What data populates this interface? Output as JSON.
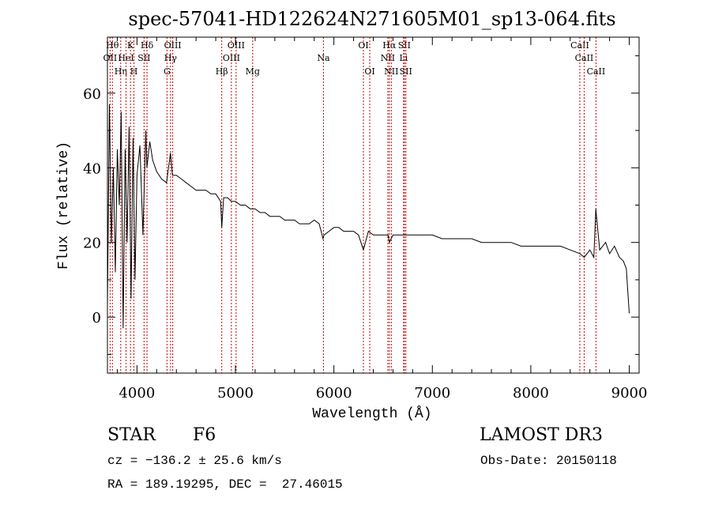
{
  "chart_data": {
    "type": "line",
    "title": "spec-57041-HD122624N271605M01_sp13-064.fits",
    "xlabel": "Wavelength (Å)",
    "ylabel": "Flux (relative)",
    "xlim": [
      3700,
      9100
    ],
    "ylim": [
      -15,
      75
    ],
    "xticks": [
      4000,
      5000,
      6000,
      7000,
      8000,
      9000
    ],
    "yticks": [
      0,
      20,
      40,
      60
    ],
    "series": [
      {
        "name": "spectrum",
        "color": "#000000",
        "x": [
          3700,
          3720,
          3740,
          3760,
          3780,
          3800,
          3820,
          3840,
          3860,
          3880,
          3900,
          3920,
          3940,
          3960,
          3980,
          4000,
          4030,
          4060,
          4090,
          4100,
          4130,
          4160,
          4200,
          4250,
          4300,
          4340,
          4360,
          4400,
          4450,
          4500,
          4550,
          4600,
          4650,
          4700,
          4750,
          4800,
          4850,
          4861,
          4880,
          4920,
          4960,
          5000,
          5050,
          5100,
          5150,
          5200,
          5250,
          5300,
          5350,
          5400,
          5450,
          5500,
          5550,
          5600,
          5650,
          5700,
          5750,
          5800,
          5850,
          5890,
          5900,
          5950,
          6000,
          6050,
          6100,
          6150,
          6200,
          6250,
          6300,
          6350,
          6400,
          6450,
          6500,
          6550,
          6563,
          6600,
          6650,
          6700,
          6750,
          6800,
          6850,
          6900,
          6950,
          7000,
          7100,
          7200,
          7300,
          7400,
          7500,
          7600,
          7700,
          7800,
          7900,
          8000,
          8100,
          8200,
          8300,
          8400,
          8500,
          8542,
          8600,
          8640,
          8660,
          8700,
          8760,
          8800,
          8850,
          8900,
          8940,
          8970,
          9000
        ],
        "y": [
          3,
          57,
          20,
          40,
          12,
          45,
          30,
          55,
          -3,
          45,
          20,
          51,
          5,
          48,
          10,
          38,
          46,
          22,
          50,
          40,
          47,
          42,
          39,
          37,
          36,
          44,
          38,
          38,
          37,
          36,
          35,
          34,
          34,
          34,
          33,
          33,
          31,
          24,
          32,
          32,
          31,
          31,
          30,
          30,
          29,
          29,
          28,
          28,
          27,
          27,
          27,
          26,
          26,
          26,
          25,
          25,
          25,
          26,
          25,
          21,
          22,
          23,
          24,
          24,
          23,
          23,
          23,
          22,
          18,
          23,
          22,
          22,
          22,
          22,
          20,
          22,
          22,
          22,
          22,
          22,
          22,
          22,
          22,
          22,
          21,
          21,
          21,
          21,
          20,
          20,
          20,
          20,
          19,
          19,
          19,
          19,
          19,
          18,
          17,
          16,
          18,
          16,
          29,
          18,
          20,
          17,
          19,
          16,
          15,
          13,
          1
        ]
      }
    ],
    "lines": [
      {
        "label": "OII",
        "wavelength": 3727,
        "row": 2
      },
      {
        "label": "Hθ",
        "wavelength": 3750,
        "row": 1
      },
      {
        "label": "Hη",
        "wavelength": 3835,
        "row": 3
      },
      {
        "label": "HeI",
        "wavelength": 3889,
        "row": 2
      },
      {
        "label": "K",
        "wavelength": 3934,
        "row": 1
      },
      {
        "label": "H",
        "wavelength": 3969,
        "row": 3
      },
      {
        "label": "SII",
        "wavelength": 4072,
        "row": 2
      },
      {
        "label": "Hδ",
        "wavelength": 4102,
        "row": 1
      },
      {
        "label": "G",
        "wavelength": 4305,
        "row": 3
      },
      {
        "label": "Hγ",
        "wavelength": 4341,
        "row": 2
      },
      {
        "label": "OIII",
        "wavelength": 4363,
        "row": 1
      },
      {
        "label": "Hβ",
        "wavelength": 4861,
        "row": 3
      },
      {
        "label": "OIII",
        "wavelength": 4959,
        "row": 2
      },
      {
        "label": "OIII",
        "wavelength": 5007,
        "row": 1
      },
      {
        "label": "Mg",
        "wavelength": 5175,
        "row": 3
      },
      {
        "label": "Na",
        "wavelength": 5894,
        "row": 2
      },
      {
        "label": "OI",
        "wavelength": 6300,
        "row": 1
      },
      {
        "label": "OI",
        "wavelength": 6364,
        "row": 3
      },
      {
        "label": "NII",
        "wavelength": 6548,
        "row": 2
      },
      {
        "label": "Hα",
        "wavelength": 6563,
        "row": 1
      },
      {
        "label": "NII",
        "wavelength": 6583,
        "row": 3
      },
      {
        "label": "Li",
        "wavelength": 6708,
        "row": 2
      },
      {
        "label": "SII",
        "wavelength": 6716,
        "row": 1
      },
      {
        "label": "SII",
        "wavelength": 6731,
        "row": 3
      },
      {
        "label": "CaII",
        "wavelength": 8498,
        "row": 1
      },
      {
        "label": "CaII",
        "wavelength": 8542,
        "row": 2
      },
      {
        "label": "CaII",
        "wavelength": 8662,
        "row": 3
      }
    ]
  },
  "footer": {
    "object_class": "STAR",
    "subclass": "F6",
    "survey": "LAMOST DR3",
    "cz": "cz = −136.2 ± 25.6 km/s",
    "obs_date": "Obs-Date: 20150118",
    "coords": "RA = 189.19295, DEC =  27.46015"
  }
}
